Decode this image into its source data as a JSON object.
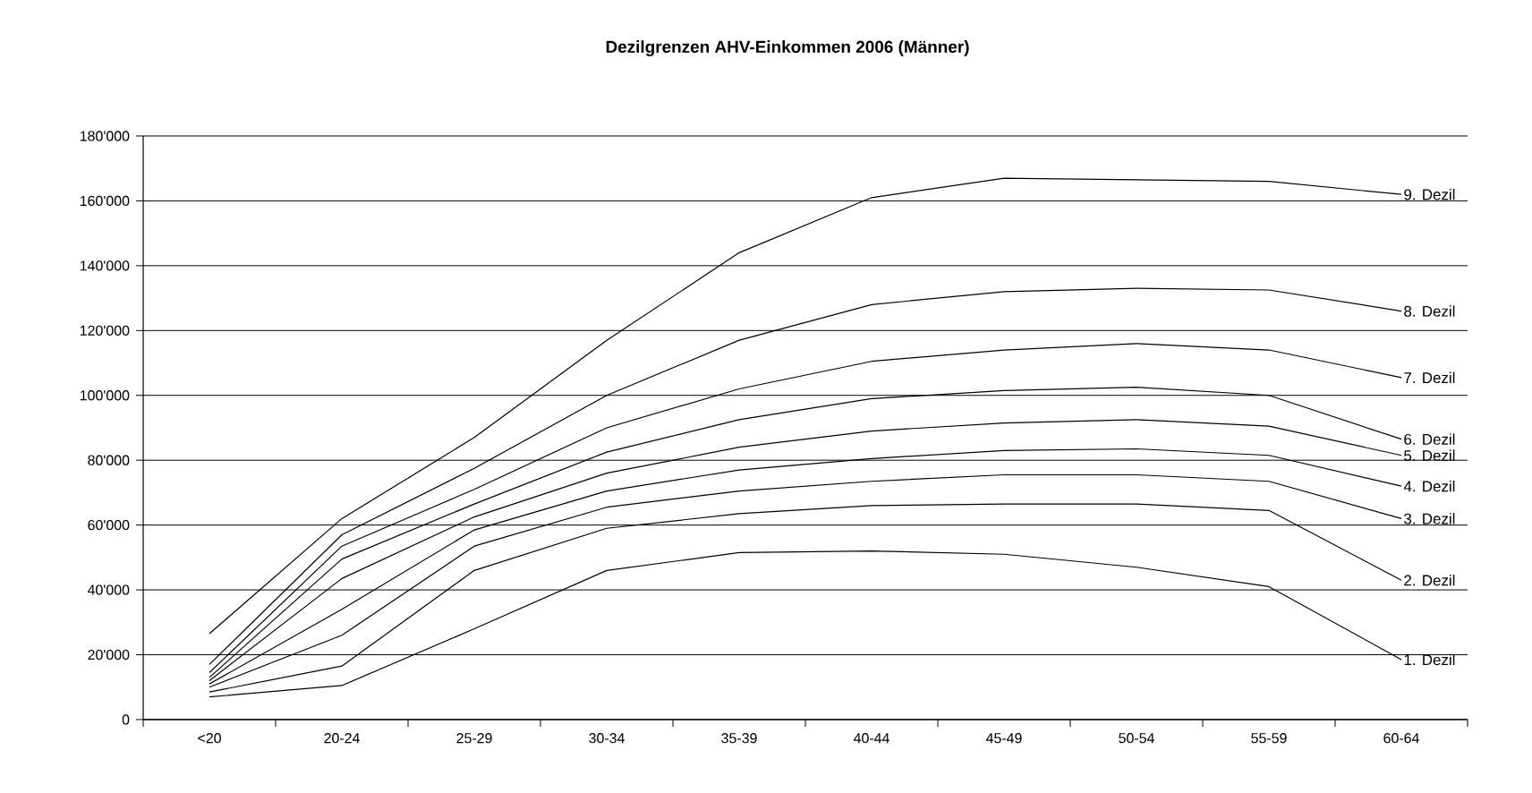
{
  "chart_data": {
    "type": "line",
    "title": "Dezilgrenzen AHV-Einkommen 2006 (Männer)",
    "categories": [
      "<20",
      "20-24",
      "25-29",
      "30-34",
      "35-39",
      "40-44",
      "45-49",
      "50-54",
      "55-59",
      "60-64"
    ],
    "series": [
      {
        "name": "1. Dezil",
        "color": "#000000",
        "values": [
          7000,
          10500,
          28000,
          46000,
          51500,
          52000,
          51000,
          47000,
          41000,
          18500
        ]
      },
      {
        "name": "2. Dezil",
        "color": "#000000",
        "values": [
          8500,
          16500,
          46000,
          59000,
          63500,
          66000,
          66500,
          66500,
          64500,
          43000
        ]
      },
      {
        "name": "3. Dezil",
        "color": "#000000",
        "values": [
          10000,
          26000,
          53500,
          65500,
          70500,
          73500,
          75500,
          75500,
          73500,
          62000
        ]
      },
      {
        "name": "4. Dezil",
        "color": "#000000",
        "values": [
          11000,
          34000,
          58500,
          70500,
          77000,
          80500,
          83000,
          83500,
          81500,
          72000
        ]
      },
      {
        "name": "5. Dezil",
        "color": "#000000",
        "values": [
          12000,
          43500,
          62500,
          76000,
          84000,
          89000,
          91500,
          92500,
          90500,
          81500
        ]
      },
      {
        "name": "6. Dezil",
        "color": "#000000",
        "values": [
          13000,
          49500,
          66500,
          82500,
          92500,
          99000,
          101500,
          102500,
          100000,
          86500
        ]
      },
      {
        "name": "7. Dezil",
        "color": "#000000",
        "values": [
          14500,
          53500,
          71000,
          90000,
          102000,
          110500,
          114000,
          116000,
          114000,
          105500
        ]
      },
      {
        "name": "8. Dezil",
        "color": "#000000",
        "values": [
          17000,
          57000,
          77500,
          100000,
          117000,
          128000,
          132000,
          133000,
          132500,
          126000
        ]
      },
      {
        "name": "9. Dezil",
        "color": "#000000",
        "values": [
          26500,
          62000,
          87000,
          117000,
          144000,
          161000,
          167000,
          166500,
          166000,
          162000
        ]
      }
    ],
    "ylim": [
      0,
      180000
    ],
    "yticks": [
      0,
      {
        "value": 20000,
        "label": "20'000"
      },
      {
        "value": 40000,
        "label": "40'000"
      },
      {
        "value": 60000,
        "label": "60'000"
      },
      {
        "value": 80000,
        "label": "80'000"
      },
      {
        "value": 100000,
        "label": "100'000"
      },
      {
        "value": 120000,
        "label": "120'000"
      },
      {
        "value": 140000,
        "label": "140'000"
      },
      {
        "value": 160000,
        "label": "160'000"
      },
      {
        "value": 180000,
        "label": "180'000"
      }
    ],
    "grid": "y",
    "legend": false,
    "marker": "none",
    "line_style": "solid"
  }
}
